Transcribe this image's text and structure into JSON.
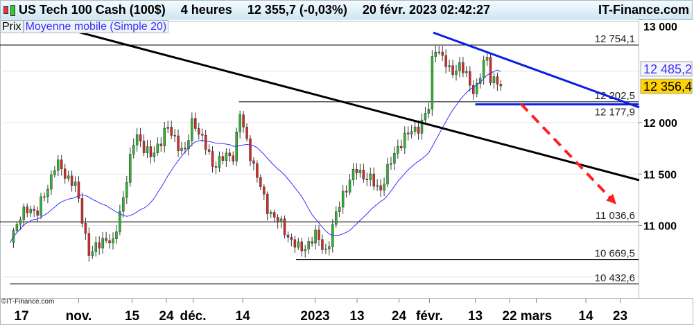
{
  "header": {
    "instrument": "US Tech 100 Cash (100$)",
    "timeframe": "4 heures",
    "price": "12 355,7 (-0,03%)",
    "datetime": "20 févr. 2023 02:42:27",
    "brand": "IT-Finance.com"
  },
  "legend": {
    "price": "Prix",
    "ma": "Moyenne mobile (Simple 20)"
  },
  "copyright": "©IT-Finance.com",
  "colors": {
    "up": "#2db52d",
    "down": "#d42a2a",
    "ma": "#3a2fff",
    "trend_blue": "#0a1ee6",
    "trend_black": "#000000",
    "arrow": "#ff2020",
    "current_badge": "#ffd200"
  },
  "chart_data": {
    "type": "candlestick",
    "indicator": "SMA 20",
    "ylim": [
      10300,
      13070
    ],
    "xlim": [
      "2022-10-14",
      "2023-03-28"
    ],
    "grid": true,
    "y_ticks": [
      {
        "v": 13000,
        "label": "13 000"
      },
      {
        "v": 12000,
        "label": "12 000"
      },
      {
        "v": 11500,
        "label": "11 500"
      },
      {
        "v": 11000,
        "label": "11 000"
      }
    ],
    "x_ticks": [
      {
        "d": "2022-10-17",
        "label": "17"
      },
      {
        "d": "2022-11-01",
        "label": "nov."
      },
      {
        "d": "2022-11-15",
        "label": "15"
      },
      {
        "d": "2022-11-24",
        "label": "24"
      },
      {
        "d": "2022-12-01",
        "label": "déc."
      },
      {
        "d": "2022-12-14",
        "label": "14"
      },
      {
        "d": "2023-01-02",
        "label": "2023"
      },
      {
        "d": "2023-01-13",
        "label": "13"
      },
      {
        "d": "2023-01-24",
        "label": "24"
      },
      {
        "d": "2023-02-01",
        "label": "févr."
      },
      {
        "d": "2023-02-13",
        "label": "13"
      },
      {
        "d": "2023-02-22",
        "label": "22"
      },
      {
        "d": "2023-03-01",
        "label": "mars"
      },
      {
        "d": "2023-03-14",
        "label": "14"
      },
      {
        "d": "2023-03-23",
        "label": "23"
      }
    ],
    "approx_close": [
      [
        "2022-10-14",
        10900
      ],
      [
        "2022-10-19",
        11200
      ],
      [
        "2022-10-21",
        11100
      ],
      [
        "2022-10-26",
        11600
      ],
      [
        "2022-10-31",
        11400
      ],
      [
        "2022-11-04",
        10700
      ],
      [
        "2022-11-08",
        10900
      ],
      [
        "2022-11-10",
        10800
      ],
      [
        "2022-11-16",
        11900
      ],
      [
        "2022-11-20",
        11650
      ],
      [
        "2022-11-24",
        11950
      ],
      [
        "2022-11-29",
        11700
      ],
      [
        "2022-12-01",
        12050
      ],
      [
        "2022-12-06",
        11600
      ],
      [
        "2022-12-12",
        11700
      ],
      [
        "2022-12-13",
        12150
      ],
      [
        "2022-12-14",
        11950
      ],
      [
        "2022-12-20",
        11200
      ],
      [
        "2022-12-27",
        10850
      ],
      [
        "2022-12-29",
        10750
      ],
      [
        "2023-01-02",
        10900
      ],
      [
        "2023-01-05",
        10750
      ],
      [
        "2023-01-09",
        11300
      ],
      [
        "2023-01-13",
        11550
      ],
      [
        "2023-01-19",
        11350
      ],
      [
        "2023-01-24",
        11800
      ],
      [
        "2023-01-30",
        12000
      ],
      [
        "2023-02-01",
        12150
      ],
      [
        "2023-02-02",
        12800
      ],
      [
        "2023-02-06",
        12500
      ],
      [
        "2023-02-09",
        12550
      ],
      [
        "2023-02-13",
        12300
      ],
      [
        "2023-02-16",
        12650
      ],
      [
        "2023-02-17",
        12450
      ],
      [
        "2023-02-20",
        12356
      ]
    ],
    "horizontal_levels": [
      {
        "v": 12754.1,
        "label": "12 754,1",
        "from": "2022-10-01"
      },
      {
        "v": 12202.5,
        "label": "12 202,5",
        "from": "2022-12-13"
      },
      {
        "v": 12177.9,
        "label": "12 177,9",
        "from": "2023-02-13",
        "color": "blue"
      },
      {
        "v": 11036.6,
        "label": "11 036,6",
        "from": "2022-10-01"
      },
      {
        "v": 10669.5,
        "label": "10 669,5",
        "from": "2022-12-28"
      },
      {
        "v": 10432.6,
        "label": "10 432,6",
        "from": "2022-10-14"
      }
    ],
    "trendlines": [
      {
        "name": "black-downtrend",
        "from": [
          "2022-10-29",
          12909
        ],
        "to": [
          "2023-03-28",
          11441
        ]
      },
      {
        "name": "blue-downtrend",
        "from": [
          "2023-02-02",
          12875
        ],
        "to": [
          "2023-03-28",
          12148
        ]
      }
    ],
    "arrow": {
      "from": [
        "2023-02-25",
        12182
      ],
      "to": [
        "2023-03-22",
        11206
      ],
      "style": "dashed"
    },
    "badges": [
      {
        "v": 12485.2,
        "label": "12 485,2",
        "kind": "ma"
      },
      {
        "v": 12356.4,
        "label": "12 356,4",
        "kind": "current"
      }
    ]
  }
}
